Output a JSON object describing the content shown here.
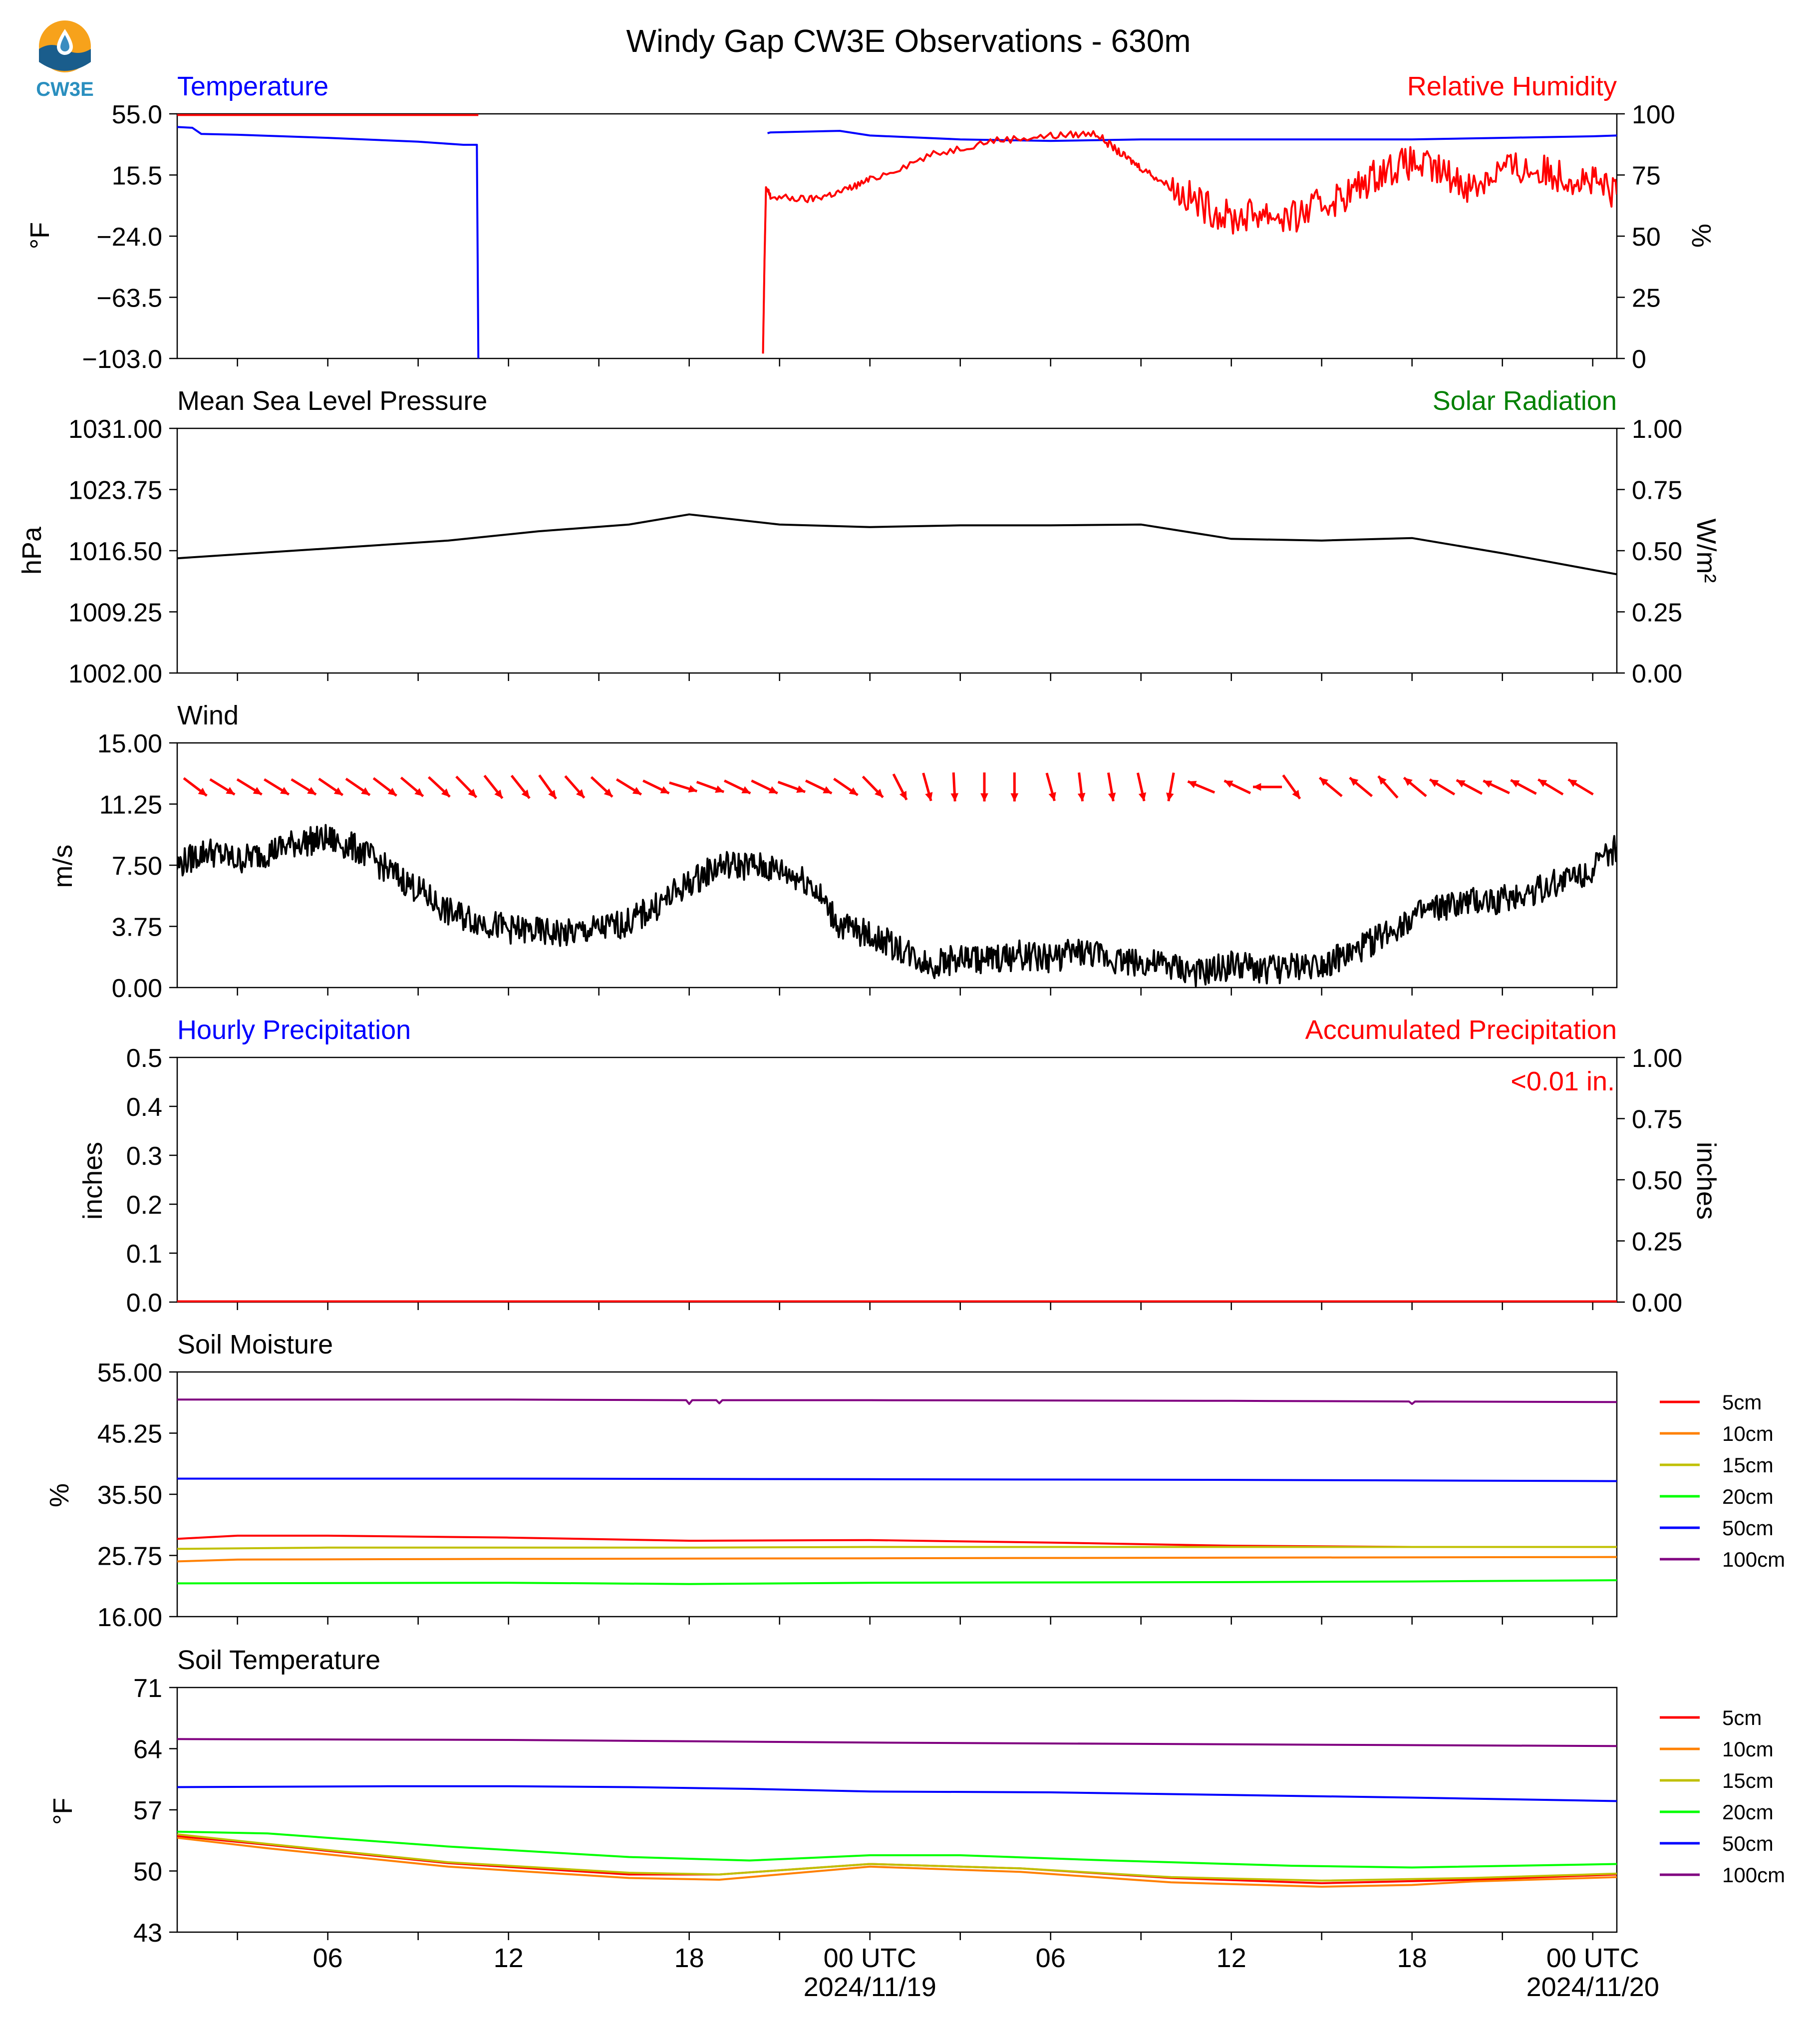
{
  "page": {
    "title": "Windy Gap CW3E Observations - 630m",
    "logo_text": "CW3E"
  },
  "x_axis": {
    "range_hours": [
      -23.0,
      24.8
    ],
    "ticks": [
      -24,
      -21,
      -18,
      -15,
      -12,
      -9,
      -6,
      -3,
      0,
      3,
      6,
      9,
      12,
      15,
      18,
      21,
      24
    ],
    "labels": [
      {
        "hour": -18,
        "text": "06"
      },
      {
        "hour": -12,
        "text": "12"
      },
      {
        "hour": -6,
        "text": "18"
      },
      {
        "hour": 0,
        "text": "00 UTC",
        "date": "2024/11/19"
      },
      {
        "hour": 6,
        "text": "06"
      },
      {
        "hour": 12,
        "text": "12"
      },
      {
        "hour": 18,
        "text": "18"
      },
      {
        "hour": 24,
        "text": "00 UTC",
        "date": "2024/11/20"
      }
    ]
  },
  "colors": {
    "temperature": "#0000ff",
    "humidity": "#ff0000",
    "pressure": "#000000",
    "solar": "#008000",
    "wind": "#000000",
    "wind_barbs": "#ff0000",
    "hourly_precip": "#0000ff",
    "accum_precip": "#ff0000",
    "depths": {
      "5cm": "#ff0000",
      "10cm": "#ff8000",
      "15cm": "#c0c000",
      "20cm": "#00ff00",
      "50cm": "#0000ff",
      "100cm": "#800080"
    }
  },
  "chart_data": [
    {
      "id": "temp_rh",
      "type": "line",
      "title_left": "Temperature",
      "title_right": "Relative Humidity",
      "ylabel_left": "°F",
      "ylabel_right": "%",
      "ylim_left": [
        -103.0,
        55.0
      ],
      "ylim_right": [
        0,
        100
      ],
      "yticks_left": [
        "55.0",
        "15.5",
        "−24.0",
        "−63.5",
        "−103.0"
      ],
      "yticks_right": [
        "100",
        "75",
        "50",
        "25",
        "0"
      ],
      "series": [
        {
          "key": "temperature",
          "axis": "left",
          "color": "#0000ff",
          "x": [
            -23.0,
            -22.5,
            -22.2,
            -21.0,
            -18.0,
            -15.0,
            -13.5,
            -13.1,
            -13.05,
            -13.0
          ],
          "y": [
            46.5,
            46.0,
            42.0,
            41.5,
            39.5,
            37.0,
            35.0,
            35.0,
            35.0,
            -103.0
          ],
          "gap_after_x": -13.0
        },
        {
          "key": "temperature",
          "axis": "left",
          "color": "#0000ff",
          "x": [
            -3.4,
            -3.3,
            -1.0,
            0.0,
            3.0,
            6.0,
            9.0,
            12.0,
            15.0,
            18.0,
            21.0,
            24.0,
            24.8
          ],
          "y": [
            42.5,
            43.0,
            44.0,
            41.0,
            38.5,
            37.5,
            38.5,
            38.5,
            38.5,
            38.5,
            39.5,
            40.5,
            41.0
          ]
        },
        {
          "key": "humidity",
          "axis": "right",
          "color": "#ff0000",
          "x": [
            -23.0,
            -13.0
          ],
          "y": [
            99.5,
            99.5
          ]
        },
        {
          "key": "humidity",
          "axis": "right",
          "color": "#ff0000",
          "x": [
            -3.55,
            -3.5,
            -3.45,
            -3.3,
            -2.0,
            -1.0,
            0.0,
            2.0,
            4.0,
            6.0,
            7.5,
            8.3,
            9.0,
            10.0,
            11.0,
            12.0,
            13.0,
            14.0,
            15.0,
            16.0,
            17.0,
            18.0,
            19.0,
            20.0,
            21.0,
            22.0,
            23.0,
            24.0,
            24.8
          ],
          "y": [
            2,
            40,
            70,
            66,
            65,
            68,
            73,
            83,
            89,
            91,
            92,
            84,
            78,
            70,
            63,
            57,
            60,
            57,
            63,
            68,
            77,
            80,
            76,
            70,
            78,
            77,
            75,
            72,
            67
          ]
        }
      ]
    },
    {
      "id": "pressure",
      "type": "line",
      "title_left": "Mean Sea Level Pressure",
      "title_right": "Solar Radiation",
      "ylabel_left": "hPa",
      "ylabel_right": "W/m²",
      "ylim_left": [
        1002.0,
        1031.0
      ],
      "ylim_right": [
        0.0,
        1.0
      ],
      "yticks_left": [
        "1031.00",
        "1023.75",
        "1016.50",
        "1009.25",
        "1002.00"
      ],
      "yticks_right": [
        "1.00",
        "0.75",
        "0.50",
        "0.25",
        "0.00"
      ],
      "series": [
        {
          "key": "pressure",
          "axis": "left",
          "color": "#000000",
          "x": [
            -23.0,
            -20.0,
            -17.0,
            -14.0,
            -11.0,
            -8.0,
            -6.0,
            -3.0,
            0.0,
            3.0,
            6.0,
            9.0,
            12.0,
            15.0,
            18.0,
            21.0,
            24.8
          ],
          "y": [
            1015.6,
            1016.3,
            1017.0,
            1017.7,
            1018.8,
            1019.6,
            1020.8,
            1019.6,
            1019.3,
            1019.5,
            1019.5,
            1019.6,
            1017.9,
            1017.7,
            1018.0,
            1016.2,
            1013.7
          ]
        }
      ]
    },
    {
      "id": "wind",
      "type": "line",
      "title_left": "Wind",
      "ylabel_left": "m/s",
      "ylim_left": [
        0.0,
        15.0
      ],
      "yticks_left": [
        "15.00",
        "11.25",
        "7.50",
        "3.75",
        "0.00"
      ],
      "series": [
        {
          "key": "wind",
          "axis": "left",
          "color": "#000000",
          "x": [
            -23.0,
            -22.0,
            -21.0,
            -20.0,
            -19.0,
            -18.0,
            -17.0,
            -16.0,
            -15.0,
            -14.0,
            -13.0,
            -12.0,
            -11.0,
            -10.0,
            -9.0,
            -8.0,
            -7.0,
            -6.0,
            -5.0,
            -4.0,
            -3.0,
            -2.0,
            -1.0,
            0.0,
            1.0,
            2.0,
            3.0,
            4.0,
            5.0,
            6.0,
            7.0,
            8.0,
            9.0,
            10.0,
            11.0,
            12.0,
            13.0,
            14.0,
            15.0,
            16.0,
            17.0,
            18.0,
            19.0,
            20.0,
            21.0,
            22.0,
            23.0,
            24.0,
            24.8
          ],
          "y": [
            7.5,
            8.4,
            7.8,
            8.3,
            8.9,
            9.1,
            8.5,
            7.2,
            6.0,
            4.6,
            4.1,
            3.6,
            3.4,
            3.3,
            3.6,
            4.0,
            5.1,
            6.4,
            7.5,
            7.5,
            7.2,
            6.5,
            3.8,
            3.2,
            2.4,
            1.4,
            1.8,
            1.7,
            2.0,
            1.8,
            2.2,
            1.8,
            1.5,
            1.3,
            0.8,
            1.4,
            1.1,
            1.2,
            1.5,
            2.0,
            3.2,
            4.3,
            4.9,
            5.2,
            5.4,
            5.9,
            6.6,
            7.3,
            8.6
          ]
        }
      ],
      "barbs": {
        "y_level": 12.3,
        "points": [
          {
            "x": -22.4,
            "a": -0.65
          },
          {
            "x": -21.5,
            "a": -0.55
          },
          {
            "x": -20.6,
            "a": -0.55
          },
          {
            "x": -19.7,
            "a": -0.55
          },
          {
            "x": -18.8,
            "a": -0.55
          },
          {
            "x": -17.9,
            "a": -0.6
          },
          {
            "x": -17.0,
            "a": -0.6
          },
          {
            "x": -16.1,
            "a": -0.65
          },
          {
            "x": -15.2,
            "a": -0.7
          },
          {
            "x": -14.3,
            "a": -0.75
          },
          {
            "x": -13.4,
            "a": -0.8
          },
          {
            "x": -12.5,
            "a": -0.9
          },
          {
            "x": -11.6,
            "a": -0.9
          },
          {
            "x": -10.7,
            "a": -0.95
          },
          {
            "x": -9.8,
            "a": -0.85
          },
          {
            "x": -8.9,
            "a": -0.75
          },
          {
            "x": -8.0,
            "a": -0.55
          },
          {
            "x": -7.1,
            "a": -0.45
          },
          {
            "x": -6.2,
            "a": -0.3
          },
          {
            "x": -5.3,
            "a": -0.35
          },
          {
            "x": -4.4,
            "a": -0.45
          },
          {
            "x": -3.5,
            "a": -0.45
          },
          {
            "x": -2.6,
            "a": -0.35
          },
          {
            "x": -1.7,
            "a": -0.45
          },
          {
            "x": -0.8,
            "a": -0.6
          },
          {
            "x": 0.1,
            "a": -0.8
          },
          {
            "x": 1.0,
            "a": -1.1
          },
          {
            "x": 1.9,
            "a": -1.3
          },
          {
            "x": 2.8,
            "a": -1.52
          },
          {
            "x": 3.8,
            "a": -1.57
          },
          {
            "x": 4.8,
            "a": -1.57
          },
          {
            "x": 6.0,
            "a": -1.3
          },
          {
            "x": 7.0,
            "a": -1.45
          },
          {
            "x": 8.0,
            "a": -1.4
          },
          {
            "x": 9.0,
            "a": -1.35
          },
          {
            "x": 10.0,
            "a": -1.75
          },
          {
            "x": 11.0,
            "a": 2.75
          },
          {
            "x": 12.2,
            "a": 2.7
          },
          {
            "x": 13.2,
            "a": 3.14
          },
          {
            "x": 14.0,
            "a": -0.95
          },
          {
            "x": 15.3,
            "a": 2.45
          },
          {
            "x": 16.3,
            "a": 2.45
          },
          {
            "x": 17.2,
            "a": 2.3
          },
          {
            "x": 18.1,
            "a": 2.45
          },
          {
            "x": 19.0,
            "a": 2.6
          },
          {
            "x": 19.9,
            "a": 2.65
          },
          {
            "x": 20.8,
            "a": 2.7
          },
          {
            "x": 21.7,
            "a": 2.65
          },
          {
            "x": 22.6,
            "a": 2.6
          },
          {
            "x": 23.6,
            "a": 2.6
          }
        ]
      }
    },
    {
      "id": "precip",
      "type": "line",
      "title_left": "Hourly Precipitation",
      "title_right": "Accumulated Precipitation",
      "annotation": "<0.01 in.",
      "ylabel_left": "inches",
      "ylabel_right": "inches",
      "ylim_left": [
        0.0,
        0.5
      ],
      "ylim_right": [
        0.0,
        1.0
      ],
      "yticks_left": [
        "0.5",
        "0.4",
        "0.3",
        "0.2",
        "0.1",
        "0.0"
      ],
      "yticks_right": [
        "1.00",
        "0.75",
        "0.50",
        "0.25",
        "0.00"
      ],
      "series": [
        {
          "key": "accum_precip",
          "axis": "right",
          "color": "#ff0000",
          "x": [
            -23.0,
            24.8
          ],
          "y": [
            0.003,
            0.003
          ]
        }
      ]
    },
    {
      "id": "soil_moisture",
      "type": "line",
      "title_left": "Soil Moisture",
      "ylabel_left": "%",
      "ylim_left": [
        16.0,
        55.0
      ],
      "yticks_left": [
        "55.00",
        "45.25",
        "35.50",
        "25.75",
        "16.00"
      ],
      "legend": [
        "5cm",
        "10cm",
        "15cm",
        "20cm",
        "50cm",
        "100cm"
      ],
      "series": [
        {
          "name": "5cm",
          "color": "#ff0000",
          "x": [
            -23,
            -21,
            -18,
            -12,
            -6,
            0,
            6,
            12,
            18,
            24.8
          ],
          "y": [
            28.4,
            28.9,
            28.9,
            28.6,
            28.1,
            28.2,
            27.8,
            27.3,
            27.1,
            27.1
          ]
        },
        {
          "name": "10cm",
          "color": "#ff8000",
          "x": [
            -23,
            -21,
            -12,
            0,
            12,
            24.8
          ],
          "y": [
            24.8,
            25.1,
            25.2,
            25.3,
            25.4,
            25.5
          ]
        },
        {
          "name": "15cm",
          "color": "#c0c000",
          "x": [
            -23,
            -18,
            -6,
            0,
            12,
            24.8
          ],
          "y": [
            26.8,
            27.0,
            27.0,
            27.1,
            27.1,
            27.1
          ]
        },
        {
          "name": "20cm",
          "color": "#00ff00",
          "x": [
            -23,
            -12,
            -6,
            0,
            12,
            18,
            24.8
          ],
          "y": [
            21.3,
            21.4,
            21.2,
            21.4,
            21.5,
            21.6,
            21.8
          ]
        },
        {
          "name": "50cm",
          "color": "#0000ff",
          "x": [
            -23,
            -12,
            0,
            12,
            24.8
          ],
          "y": [
            38.0,
            38.0,
            37.9,
            37.8,
            37.6
          ]
        },
        {
          "name": "100cm",
          "color": "#800080",
          "x": [
            -23,
            -12,
            -6.1,
            -6,
            -5.9,
            -5.1,
            -5,
            -4.9,
            0,
            12,
            17.9,
            18,
            18.1,
            24.8
          ],
          "y": [
            50.6,
            50.6,
            50.5,
            49.9,
            50.5,
            50.5,
            50.0,
            50.5,
            50.5,
            50.4,
            50.3,
            49.9,
            50.3,
            50.2
          ]
        }
      ]
    },
    {
      "id": "soil_temperature",
      "type": "line",
      "title_left": "Soil Temperature",
      "ylabel_left": "°F",
      "ylim_left": [
        43,
        71
      ],
      "yticks_left": [
        "71",
        "64",
        "57",
        "50",
        "43"
      ],
      "legend": [
        "5cm",
        "10cm",
        "15cm",
        "20cm",
        "50cm",
        "100cm"
      ],
      "series": [
        {
          "name": "5cm",
          "color": "#ff0000",
          "x": [
            -23,
            -20,
            -14,
            -8,
            -5,
            0,
            5,
            10,
            15,
            20,
            24.8
          ],
          "y": [
            54.0,
            53.0,
            50.9,
            49.6,
            49.6,
            50.8,
            50.3,
            49.2,
            48.6,
            49.0,
            49.6
          ]
        },
        {
          "name": "10cm",
          "color": "#ff8000",
          "x": [
            -23,
            -20,
            -14,
            -8,
            -5,
            0,
            5,
            10,
            15,
            18,
            20,
            24.8
          ],
          "y": [
            53.8,
            52.6,
            50.5,
            49.2,
            49.0,
            50.5,
            49.9,
            48.7,
            48.2,
            48.4,
            48.8,
            49.3
          ]
        },
        {
          "name": "15cm",
          "color": "#c0c000",
          "x": [
            -23,
            -20,
            -14,
            -8,
            -5,
            0,
            5,
            10,
            15,
            20,
            24.8
          ],
          "y": [
            54.2,
            53.1,
            51.0,
            49.8,
            49.6,
            50.8,
            50.3,
            49.3,
            48.9,
            49.2,
            49.7
          ]
        },
        {
          "name": "20cm",
          "color": "#00ff00",
          "x": [
            -23,
            -20,
            -14,
            -8,
            -4,
            0,
            3,
            8,
            14,
            18,
            24.8
          ],
          "y": [
            54.5,
            54.3,
            52.8,
            51.6,
            51.2,
            51.8,
            51.8,
            51.2,
            50.6,
            50.4,
            50.8
          ]
        },
        {
          "name": "50cm",
          "color": "#0000ff",
          "x": [
            -23,
            -16,
            -12,
            -8,
            -4,
            0,
            6,
            12,
            18,
            24.8
          ],
          "y": [
            59.6,
            59.7,
            59.7,
            59.6,
            59.4,
            59.1,
            59.0,
            58.7,
            58.4,
            58.0
          ]
        },
        {
          "name": "100cm",
          "color": "#800080",
          "x": [
            -23,
            -12,
            0,
            12,
            24.8
          ],
          "y": [
            65.1,
            65.0,
            64.7,
            64.5,
            64.3
          ]
        }
      ]
    }
  ]
}
